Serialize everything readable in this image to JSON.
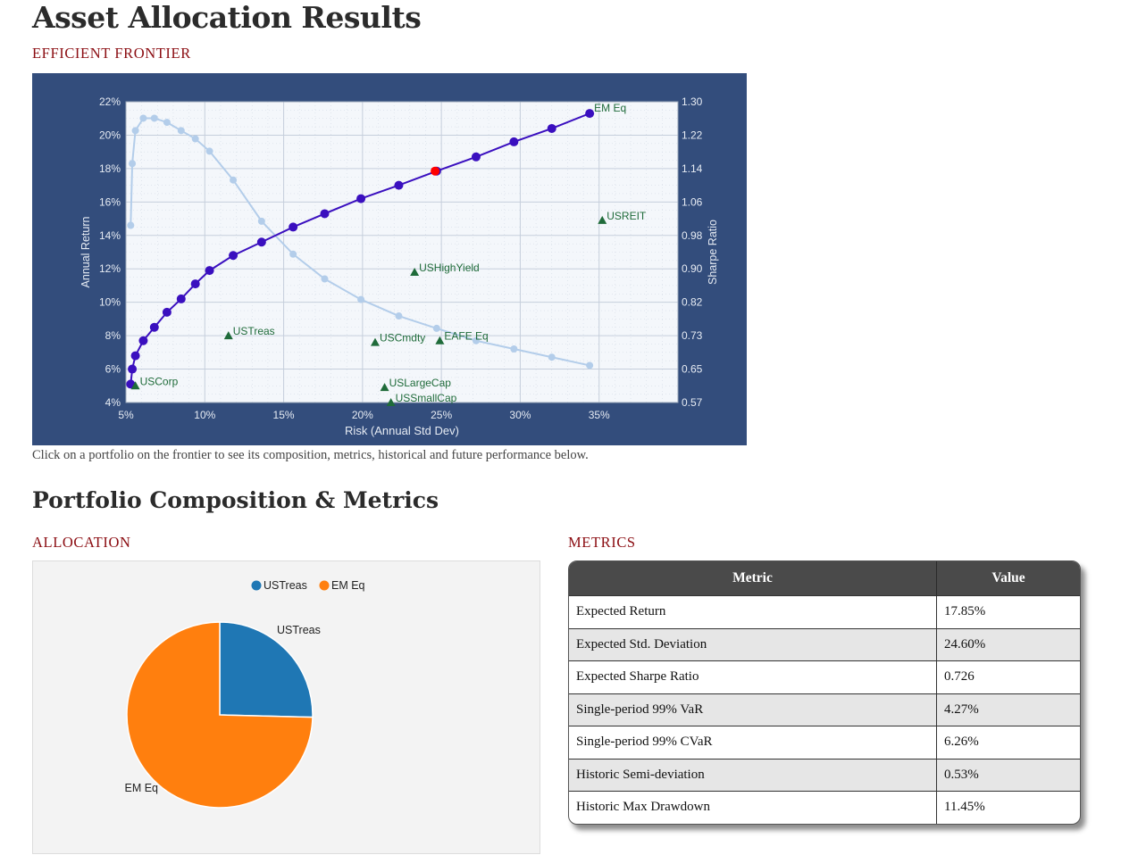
{
  "page_title": "Asset Allocation Results",
  "frontier_label": "EFFICIENT FRONTIER",
  "note": "Click on a portfolio on the frontier to see its composition, metrics, historical and future performance below.",
  "section_title": "Portfolio Composition & Metrics",
  "allocation_label": "ALLOCATION",
  "metrics_label": "METRICS",
  "colors": {
    "frame": "#334d7c",
    "frontier": "#3a0fbf",
    "sharpe": "#b3cdea",
    "selected": "#ff0000",
    "asset": "#1f6b3a",
    "ustreas": "#1f77b4",
    "emeq": "#ff7f0e"
  },
  "chart_data": [
    {
      "type": "scatter",
      "xlabel": "Risk (Annual Std Dev)",
      "ylabel": "Annual Return",
      "y2label": "Sharpe Ratio",
      "xlim": [
        5,
        40
      ],
      "ylim": [
        4,
        22
      ],
      "y2lim": [
        0.57,
        1.3
      ],
      "x_ticks": [
        "5%",
        "10%",
        "15%",
        "20%",
        "25%",
        "30%",
        "35%"
      ],
      "x_tick_values": [
        5,
        10,
        15,
        20,
        25,
        30,
        35
      ],
      "y_ticks": [
        "4%",
        "6%",
        "8%",
        "10%",
        "12%",
        "14%",
        "16%",
        "18%",
        "20%",
        "22%"
      ],
      "y_tick_values": [
        4,
        6,
        8,
        10,
        12,
        14,
        16,
        18,
        20,
        22
      ],
      "y2_ticks": [
        "0.57",
        "0.65",
        "0.73",
        "0.82",
        "0.90",
        "0.98",
        "1.06",
        "1.14",
        "1.22",
        "1.30"
      ],
      "frontier": {
        "x": [
          5.3,
          5.4,
          5.6,
          6.1,
          6.8,
          7.6,
          8.5,
          9.4,
          10.3,
          11.8,
          13.6,
          15.6,
          17.6,
          19.9,
          22.3,
          24.7,
          27.2,
          29.6,
          32.0,
          34.4
        ],
        "y": [
          5.1,
          6.0,
          6.8,
          7.7,
          8.5,
          9.4,
          10.2,
          11.1,
          11.9,
          12.8,
          13.6,
          14.5,
          15.3,
          16.2,
          17.0,
          17.85,
          18.7,
          19.6,
          20.4,
          21.3
        ]
      },
      "selected": {
        "x": 24.6,
        "y": 17.85
      },
      "sharpe_curve": {
        "x": [
          5.3,
          5.4,
          5.6,
          6.1,
          6.8,
          7.6,
          8.5,
          9.4,
          10.3,
          11.8,
          13.6,
          15.6,
          17.6,
          19.9,
          22.3,
          24.7,
          27.2,
          29.6,
          32.0,
          34.4
        ],
        "y": [
          1.0,
          1.15,
          1.23,
          1.26,
          1.26,
          1.25,
          1.23,
          1.21,
          1.18,
          1.11,
          1.01,
          0.93,
          0.87,
          0.82,
          0.78,
          0.75,
          0.72,
          0.7,
          0.68,
          0.66
        ]
      },
      "assets": [
        {
          "name": "USCorp",
          "x": 5.6,
          "y": 5.0
        },
        {
          "name": "USTreas",
          "x": 11.5,
          "y": 8.0
        },
        {
          "name": "USCmdty",
          "x": 20.8,
          "y": 7.6
        },
        {
          "name": "EAFE Eq",
          "x": 24.9,
          "y": 7.7
        },
        {
          "name": "USHighYield",
          "x": 23.3,
          "y": 11.8
        },
        {
          "name": "USLargeCap",
          "x": 21.4,
          "y": 4.9
        },
        {
          "name": "USSmallCap",
          "x": 21.8,
          "y": 4.0
        },
        {
          "name": "USREIT",
          "x": 35.2,
          "y": 14.9
        },
        {
          "name": "EM Eq",
          "x": 34.4,
          "y": 21.3,
          "marker": false
        }
      ]
    },
    {
      "type": "pie",
      "legend": [
        "USTreas",
        "EM Eq"
      ],
      "slices": [
        {
          "label": "USTreas",
          "value": 25.4
        },
        {
          "label": "EM Eq",
          "value": 74.6
        }
      ]
    }
  ],
  "metrics_table": {
    "headers": [
      "Metric",
      "Value"
    ],
    "rows": [
      {
        "metric": "Expected Return",
        "value": "17.85%"
      },
      {
        "metric": "Expected Std. Deviation",
        "value": "24.60%"
      },
      {
        "metric": "Expected Sharpe Ratio",
        "value": "0.726"
      },
      {
        "metric": "Single-period 99% VaR",
        "value": "4.27%"
      },
      {
        "metric": "Single-period 99% CVaR",
        "value": "6.26%"
      },
      {
        "metric": "Historic Semi-deviation",
        "value": "0.53%"
      },
      {
        "metric": "Historic Max Drawdown",
        "value": "11.45%"
      }
    ]
  }
}
